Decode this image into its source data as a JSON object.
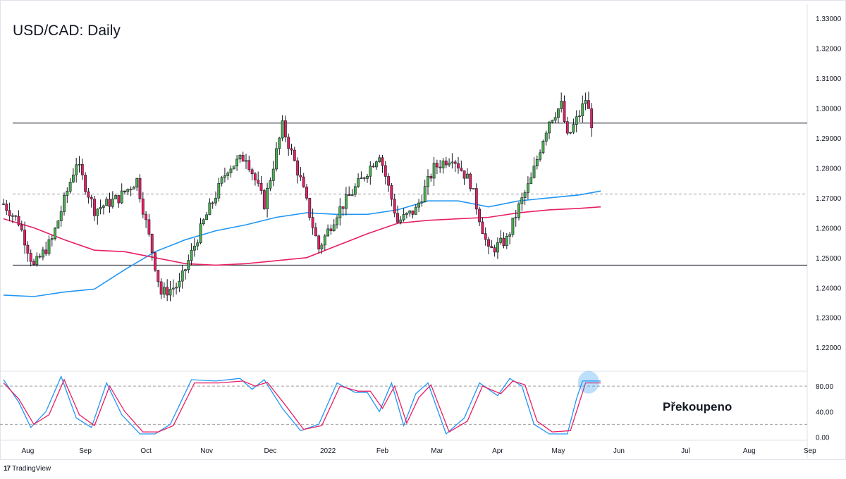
{
  "chart_data": [
    {
      "type": "candlestick",
      "title": "USD/CAD: Daily",
      "ylim": [
        1.2125,
        1.335
      ],
      "yticks": [
        "1.33000",
        "1.32000",
        "1.31000",
        "1.30000",
        "1.29000",
        "1.28000",
        "1.27000",
        "1.26000",
        "1.25000",
        "1.24000",
        "1.23000",
        "1.22000"
      ],
      "xticks": [
        "Aug",
        "Sep",
        "Oct",
        "Nov",
        "Dec",
        "2022",
        "Feb",
        "Mar",
        "Apr",
        "May",
        "Jun",
        "Jul",
        "Aug",
        "Sep"
      ],
      "horizontal_levels": [
        {
          "value": 1.295,
          "style": "solid"
        },
        {
          "value": 1.2475,
          "style": "solid"
        },
        {
          "value": 1.2713,
          "style": "dashed"
        }
      ],
      "close_path": [
        [
          0,
          1.268
        ],
        [
          5,
          1.262
        ],
        [
          10,
          1.247
        ],
        [
          16,
          1.256
        ],
        [
          24,
          1.282
        ],
        [
          30,
          1.266
        ],
        [
          38,
          1.27
        ],
        [
          44,
          1.276
        ],
        [
          52,
          1.238
        ],
        [
          58,
          1.241
        ],
        [
          66,
          1.262
        ],
        [
          74,
          1.28
        ],
        [
          80,
          1.284
        ],
        [
          86,
          1.268
        ],
        [
          92,
          1.294
        ],
        [
          98,
          1.276
        ],
        [
          104,
          1.253
        ],
        [
          110,
          1.265
        ],
        [
          118,
          1.276
        ],
        [
          124,
          1.285
        ],
        [
          130,
          1.262
        ],
        [
          136,
          1.266
        ],
        [
          142,
          1.28
        ],
        [
          148,
          1.284
        ],
        [
          154,
          1.275
        ],
        [
          160,
          1.252
        ],
        [
          166,
          1.256
        ],
        [
          170,
          1.267
        ],
        [
          174,
          1.276
        ],
        [
          178,
          1.29
        ],
        [
          180,
          1.296
        ],
        [
          184,
          1.301
        ],
        [
          186,
          1.29
        ],
        [
          190,
          1.298
        ],
        [
          192,
          1.303
        ],
        [
          194,
          1.295
        ]
      ],
      "series": [
        {
          "name": "",
          "color": "#2196f3",
          "type": "moving-average",
          "points": [
            [
              0,
              1.2375
            ],
            [
              10,
              1.237
            ],
            [
              20,
              1.2385
            ],
            [
              30,
              1.2395
            ],
            [
              40,
              1.246
            ],
            [
              50,
              1.252
            ],
            [
              60,
              1.256
            ],
            [
              70,
              1.259
            ],
            [
              80,
              1.261
            ],
            [
              90,
              1.2635
            ],
            [
              100,
              1.265
            ],
            [
              110,
              1.2645
            ],
            [
              120,
              1.2645
            ],
            [
              130,
              1.266
            ],
            [
              140,
              1.269
            ],
            [
              150,
              1.269
            ],
            [
              160,
              1.267
            ],
            [
              170,
              1.269
            ],
            [
              180,
              1.27
            ],
            [
              190,
              1.271
            ],
            [
              197,
              1.2723
            ]
          ]
        },
        {
          "name": "",
          "color": "#e91e63",
          "type": "moving-average",
          "points": [
            [
              0,
              1.263
            ],
            [
              10,
              1.26
            ],
            [
              20,
              1.256
            ],
            [
              30,
              1.2525
            ],
            [
              40,
              1.252
            ],
            [
              50,
              1.25
            ],
            [
              60,
              1.248
            ],
            [
              70,
              1.2475
            ],
            [
              80,
              1.248
            ],
            [
              90,
              1.249
            ],
            [
              100,
              1.25
            ],
            [
              110,
              1.254
            ],
            [
              120,
              1.258
            ],
            [
              130,
              1.2615
            ],
            [
              140,
              1.2625
            ],
            [
              150,
              1.263
            ],
            [
              160,
              1.2635
            ],
            [
              170,
              1.265
            ],
            [
              180,
              1.266
            ],
            [
              190,
              1.2665
            ],
            [
              197,
              1.267
            ]
          ]
        }
      ]
    },
    {
      "type": "line",
      "ylim": [
        -5,
        100
      ],
      "yticks": [
        "80.00",
        "40.00",
        "0.00"
      ],
      "levels": [
        80,
        20
      ],
      "series": [
        {
          "name": "",
          "color": "#2196f3",
          "points": [
            [
              0,
              90
            ],
            [
              5,
              55
            ],
            [
              9,
              15
            ],
            [
              14,
              40
            ],
            [
              19,
              95
            ],
            [
              24,
              30
            ],
            [
              29,
              15
            ],
            [
              34,
              85
            ],
            [
              39,
              35
            ],
            [
              45,
              5
            ],
            [
              50,
              5
            ],
            [
              55,
              20
            ],
            [
              62,
              90
            ],
            [
              70,
              88
            ],
            [
              78,
              92
            ],
            [
              82,
              75
            ],
            [
              86,
              90
            ],
            [
              92,
              45
            ],
            [
              98,
              10
            ],
            [
              104,
              20
            ],
            [
              110,
              85
            ],
            [
              116,
              70
            ],
            [
              120,
              70
            ],
            [
              124,
              40
            ],
            [
              128,
              85
            ],
            [
              132,
              18
            ],
            [
              136,
              68
            ],
            [
              140,
              85
            ],
            [
              146,
              5
            ],
            [
              152,
              30
            ],
            [
              157,
              85
            ],
            [
              163,
              65
            ],
            [
              167,
              92
            ],
            [
              171,
              80
            ],
            [
              175,
              20
            ],
            [
              180,
              5
            ],
            [
              186,
              5
            ],
            [
              189,
              60
            ],
            [
              191,
              88
            ],
            [
              197,
              88
            ]
          ]
        },
        {
          "name": "",
          "color": "#e91e63",
          "points": [
            [
              0,
              85
            ],
            [
              5,
              60
            ],
            [
              10,
              20
            ],
            [
              15,
              35
            ],
            [
              20,
              90
            ],
            [
              25,
              35
            ],
            [
              30,
              18
            ],
            [
              35,
              80
            ],
            [
              40,
              40
            ],
            [
              46,
              8
            ],
            [
              51,
              8
            ],
            [
              56,
              18
            ],
            [
              63,
              85
            ],
            [
              71,
              85
            ],
            [
              79,
              88
            ],
            [
              83,
              80
            ],
            [
              87,
              86
            ],
            [
              93,
              50
            ],
            [
              99,
              12
            ],
            [
              105,
              18
            ],
            [
              111,
              80
            ],
            [
              117,
              72
            ],
            [
              121,
              72
            ],
            [
              125,
              45
            ],
            [
              129,
              80
            ],
            [
              133,
              22
            ],
            [
              137,
              62
            ],
            [
              141,
              82
            ],
            [
              147,
              8
            ],
            [
              153,
              25
            ],
            [
              158,
              80
            ],
            [
              164,
              68
            ],
            [
              168,
              88
            ],
            [
              172,
              82
            ],
            [
              176,
              25
            ],
            [
              181,
              8
            ],
            [
              187,
              10
            ],
            [
              190,
              55
            ],
            [
              192,
              85
            ],
            [
              197,
              85
            ]
          ]
        }
      ],
      "highlight_label": "Překoupeno"
    }
  ],
  "colors": {
    "bull": "#4caf50",
    "bear": "#e91e63",
    "wick": "#131722",
    "grid_line": "#131722",
    "dash": "#9e9e9e",
    "stoch_fast": "#2196f3",
    "stoch_slow": "#e91e63",
    "highlight": "#2196f3"
  },
  "branding": {
    "logo": "17",
    "text": "TradingView"
  }
}
